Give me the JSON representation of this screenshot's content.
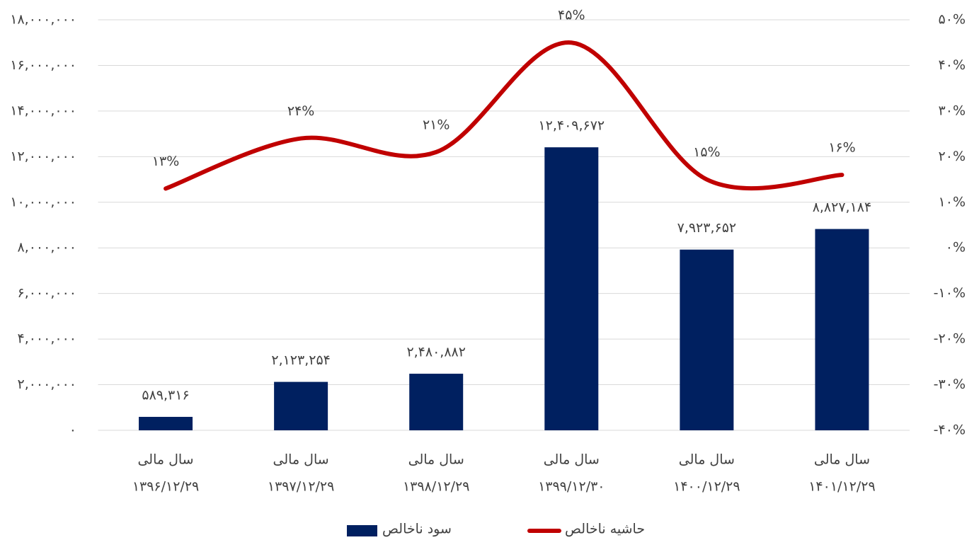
{
  "chart_data": {
    "type": "bar-line",
    "categories": [
      [
        "سال مالی",
        "۱۳۹۶/۱۲/۲۹"
      ],
      [
        "سال مالی",
        "۱۳۹۷/۱۲/۲۹"
      ],
      [
        "سال مالی",
        "۱۳۹۸/۱۲/۲۹"
      ],
      [
        "سال مالی",
        "۱۳۹۹/۱۲/۳۰"
      ],
      [
        "سال مالی",
        "۱۴۰۰/۱۲/۲۹"
      ],
      [
        "سال مالی",
        "۱۴۰۱/۱۲/۲۹"
      ]
    ],
    "series": [
      {
        "name": "سود ناخالص",
        "type": "bar",
        "color": "#002060",
        "values": [
          589316,
          2123254,
          2480882,
          12409672,
          7923652,
          8827184
        ],
        "value_labels": [
          "۵۸۹,۳۱۶",
          "۲,۱۲۳,۲۵۴",
          "۲,۴۸۰,۸۸۲",
          "۱۲,۴۰۹,۶۷۲",
          "۷,۹۲۳,۶۵۲",
          "۸,۸۲۷,۱۸۴"
        ]
      },
      {
        "name": "حاشیه ناخالص",
        "type": "line",
        "axis": "y2",
        "color": "#c00000",
        "values": [
          13,
          24,
          21,
          45,
          15,
          16
        ],
        "value_labels": [
          "۱۳%",
          "۲۴%",
          "۲۱%",
          "۴۵%",
          "۱۵%",
          "۱۶%"
        ]
      }
    ],
    "ylim": [
      0,
      18000000
    ],
    "yticks": [
      {
        "value": 0,
        "label": "۰"
      },
      {
        "value": 2000000,
        "label": "۲,۰۰۰,۰۰۰"
      },
      {
        "value": 4000000,
        "label": "۴,۰۰۰,۰۰۰"
      },
      {
        "value": 6000000,
        "label": "۶,۰۰۰,۰۰۰"
      },
      {
        "value": 8000000,
        "label": "۸,۰۰۰,۰۰۰"
      },
      {
        "value": 10000000,
        "label": "۱۰,۰۰۰,۰۰۰"
      },
      {
        "value": 12000000,
        "label": "۱۲,۰۰۰,۰۰۰"
      },
      {
        "value": 14000000,
        "label": "۱۴,۰۰۰,۰۰۰"
      },
      {
        "value": 16000000,
        "label": "۱۶,۰۰۰,۰۰۰"
      },
      {
        "value": 18000000,
        "label": "۱۸,۰۰۰,۰۰۰"
      }
    ],
    "y2lim": [
      -40,
      50
    ],
    "y2ticks": [
      {
        "value": -40,
        "label": "-۴۰%"
      },
      {
        "value": -30,
        "label": "-۳۰%"
      },
      {
        "value": -20,
        "label": "-۲۰%"
      },
      {
        "value": -10,
        "label": "-۱۰%"
      },
      {
        "value": 0,
        "label": "۰%"
      },
      {
        "value": 10,
        "label": "۱۰%"
      },
      {
        "value": 20,
        "label": "۲۰%"
      },
      {
        "value": 30,
        "label": "۳۰%"
      },
      {
        "value": 40,
        "label": "۴۰%"
      },
      {
        "value": 50,
        "label": "۵۰%"
      }
    ],
    "grid": true,
    "legend": "bottom"
  }
}
